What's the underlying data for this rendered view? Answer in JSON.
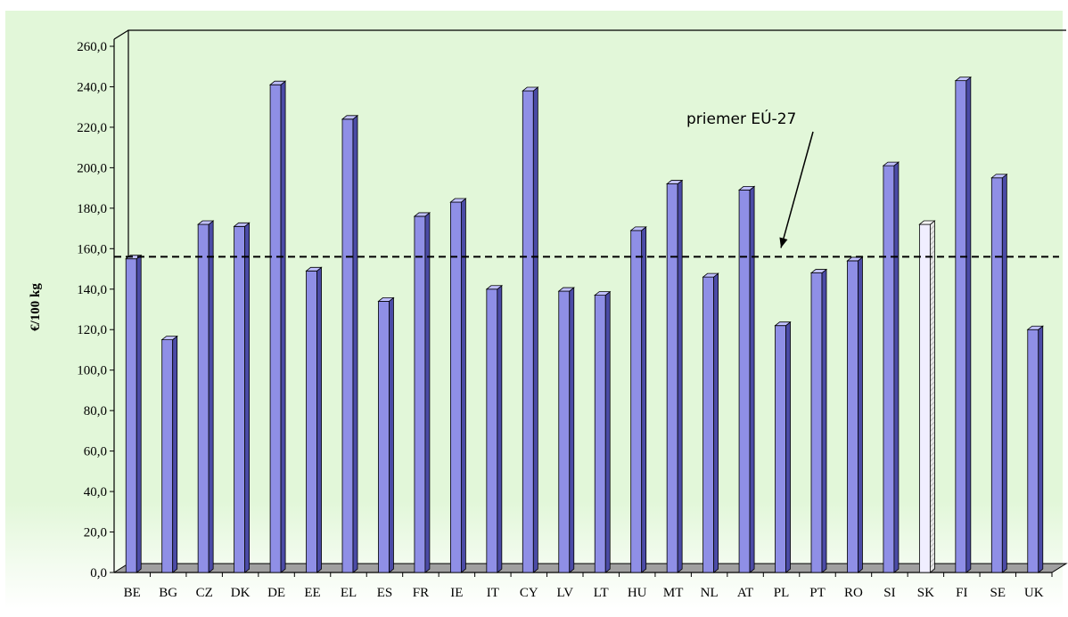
{
  "chart_data": {
    "type": "bar",
    "title": "",
    "xlabel": "",
    "ylabel": "€/100 kg",
    "ylim": [
      0,
      260
    ],
    "ytick_step": 20,
    "ytick_labels": [
      "0,0",
      "20,0",
      "40,0",
      "60,0",
      "80,0",
      "100,0",
      "120,0",
      "140,0",
      "160,0",
      "180,0",
      "200,0",
      "220,0",
      "240,0",
      "260,0"
    ],
    "categories": [
      "BE",
      "BG",
      "CZ",
      "DK",
      "DE",
      "EE",
      "EL",
      "ES",
      "FR",
      "IE",
      "IT",
      "CY",
      "LV",
      "LT",
      "HU",
      "MT",
      "NL",
      "AT",
      "PL",
      "PT",
      "RO",
      "SI",
      "SK",
      "FI",
      "SE",
      "UK"
    ],
    "values": [
      155,
      115,
      172,
      171,
      241,
      149,
      224,
      134,
      176,
      183,
      140,
      238,
      139,
      137,
      169,
      192,
      146,
      189,
      122,
      148,
      154,
      201,
      172,
      243,
      195,
      120
    ],
    "highlight_category": "SK",
    "reference_line": {
      "value": 156,
      "label": "priemer EÚ-27",
      "style": "dashed"
    },
    "grid": false,
    "legend": "none",
    "colors": {
      "bar": "#8f8fe6",
      "bar_side": "#4b4ba6",
      "bar_top": "#c0c0ff",
      "highlight_bar": "#f0eeff",
      "background": "#e2f7d9",
      "floor": "#a0a0a0",
      "reference_line": "#000000"
    }
  }
}
